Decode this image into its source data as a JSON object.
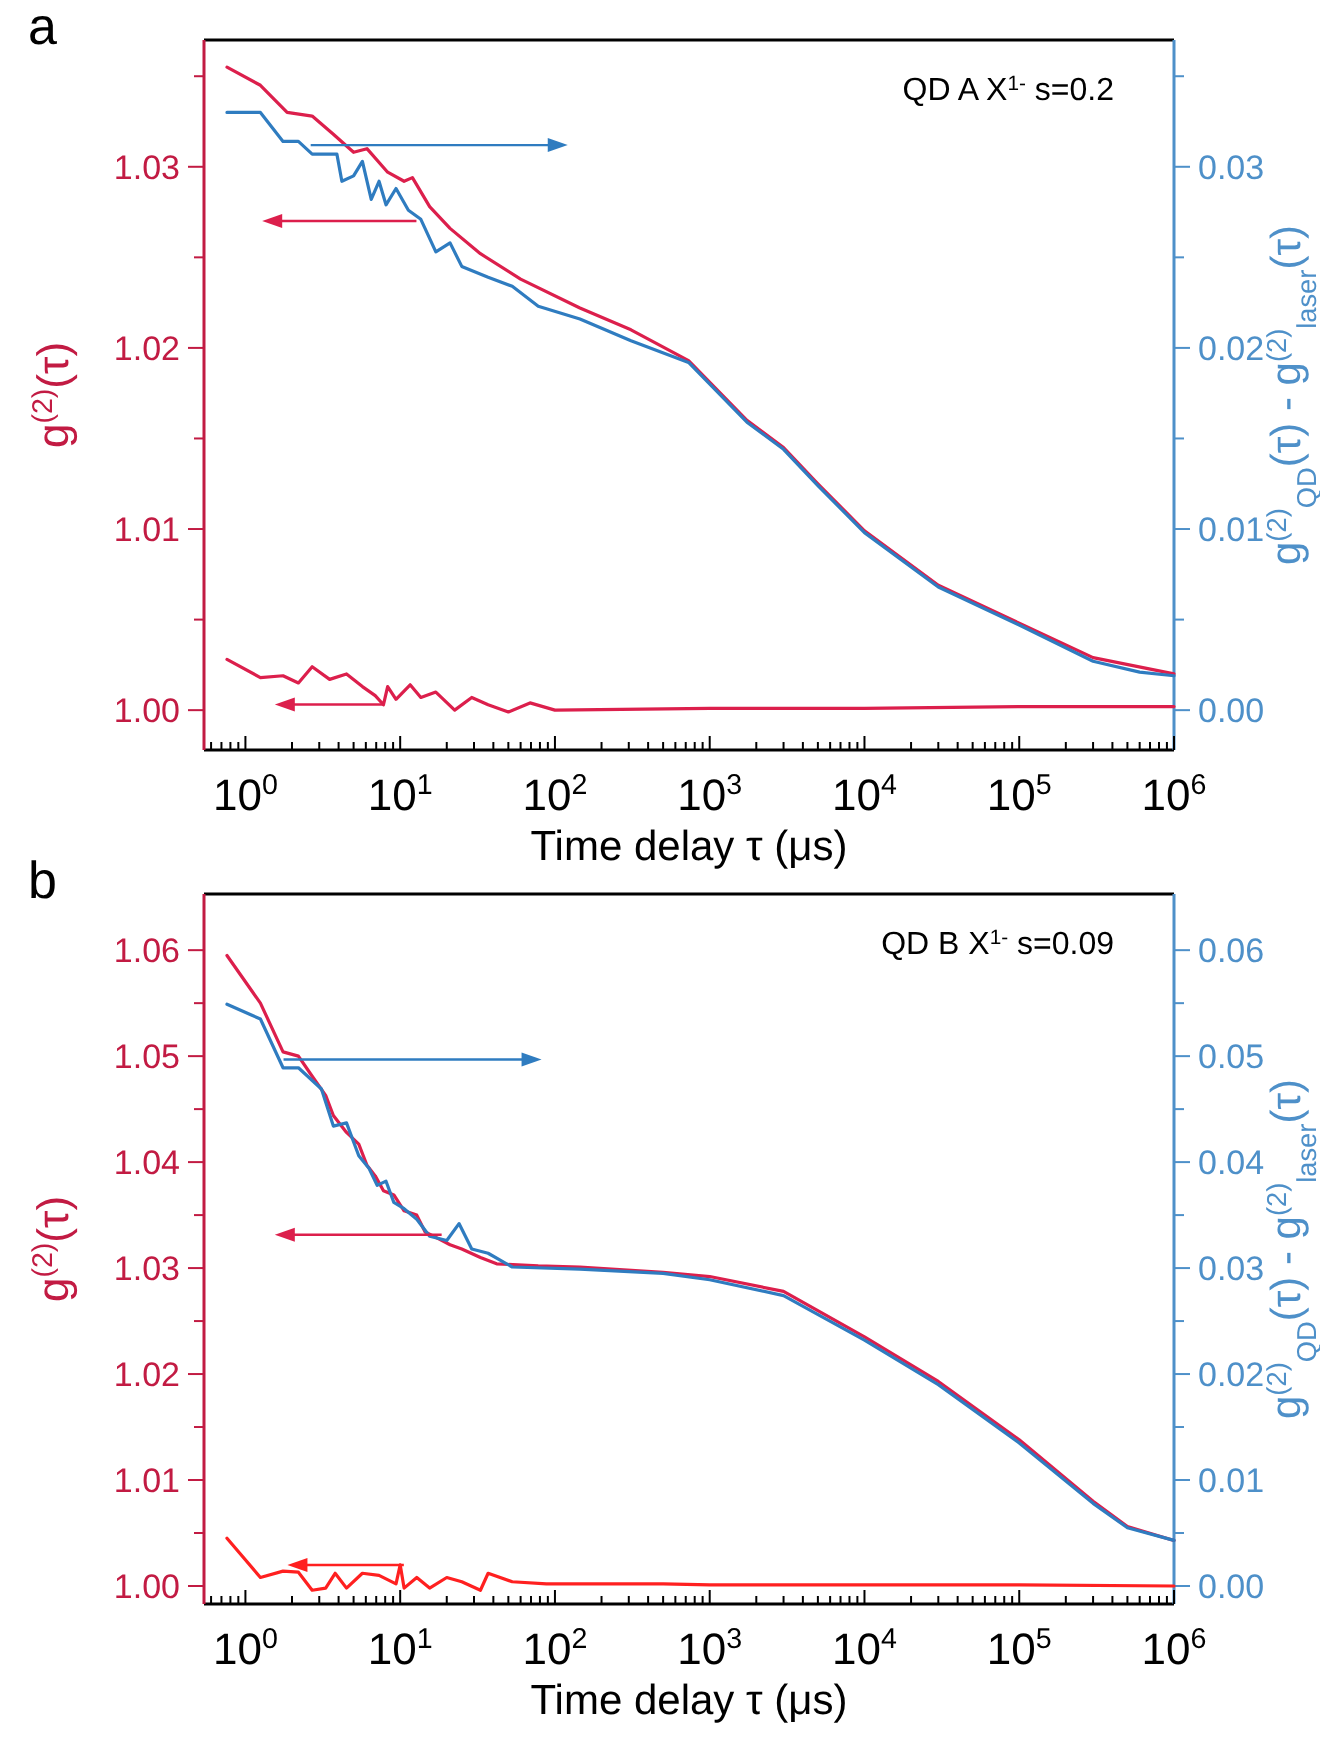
{
  "chart_data": [
    {
      "type": "line",
      "title": "a",
      "xlabel": "Time delay τ (μs)",
      "ylabel": "g$^{(2)}$(τ)",
      "y2label": "g$^{(2)}$$_{QD}$(τ) - g$^{(2)}$$_{laser}$(τ)",
      "annotations": [
        "QD A X$^{1-}$ s=0.2"
      ],
      "log": "x",
      "xlim": [
        0.54,
        1000000
      ],
      "ylim": [
        0.9978,
        1.037
      ],
      "y2lim": [
        -0.0022,
        0.037
      ],
      "xticks": [
        {
          "value": 0.6,
          "label": null
        },
        {
          "value": 0.7,
          "label": null
        },
        {
          "value": 0.8,
          "label": null
        },
        {
          "value": 0.9,
          "label": null
        },
        {
          "value": 1,
          "label": "10$^{0}$"
        },
        {
          "value": 2,
          "label": null
        },
        {
          "value": 3,
          "label": null
        },
        {
          "value": 4,
          "label": null
        },
        {
          "value": 5,
          "label": null
        },
        {
          "value": 6,
          "label": null
        },
        {
          "value": 7,
          "label": null
        },
        {
          "value": 8,
          "label": null
        },
        {
          "value": 9,
          "label": null
        },
        {
          "value": 10,
          "label": "10$^{1}$"
        },
        {
          "value": 20,
          "label": null
        },
        {
          "value": 30,
          "label": null
        },
        {
          "value": 40,
          "label": null
        },
        {
          "value": 50,
          "label": null
        },
        {
          "value": 60,
          "label": null
        },
        {
          "value": 70,
          "label": null
        },
        {
          "value": 80,
          "label": null
        },
        {
          "value": 90,
          "label": null
        },
        {
          "value": 100,
          "label": "10$^{2}$"
        },
        {
          "value": 200,
          "label": null
        },
        {
          "value": 300,
          "label": null
        },
        {
          "value": 400,
          "label": null
        },
        {
          "value": 500,
          "label": null
        },
        {
          "value": 600,
          "label": null
        },
        {
          "value": 700,
          "label": null
        },
        {
          "value": 800,
          "label": null
        },
        {
          "value": 900,
          "label": null
        },
        {
          "value": 1000,
          "label": "10$^{3}$"
        },
        {
          "value": 2000,
          "label": null
        },
        {
          "value": 3000,
          "label": null
        },
        {
          "value": 4000,
          "label": null
        },
        {
          "value": 5000,
          "label": null
        },
        {
          "value": 6000,
          "label": null
        },
        {
          "value": 7000,
          "label": null
        },
        {
          "value": 8000,
          "label": null
        },
        {
          "value": 9000,
          "label": null
        },
        {
          "value": 10000,
          "label": "10$^{4}$"
        },
        {
          "value": 20000,
          "label": null
        },
        {
          "value": 30000,
          "label": null
        },
        {
          "value": 40000,
          "label": null
        },
        {
          "value": 50000,
          "label": null
        },
        {
          "value": 60000,
          "label": null
        },
        {
          "value": 70000,
          "label": null
        },
        {
          "value": 80000,
          "label": null
        },
        {
          "value": 90000,
          "label": null
        },
        {
          "value": 100000,
          "label": "10$^{5}$"
        },
        {
          "value": 200000,
          "label": null
        },
        {
          "value": 300000,
          "label": null
        },
        {
          "value": 400000,
          "label": null
        },
        {
          "value": 500000,
          "label": null
        },
        {
          "value": 600000,
          "label": null
        },
        {
          "value": 700000,
          "label": null
        },
        {
          "value": 800000,
          "label": null
        },
        {
          "value": 900000,
          "label": null
        },
        {
          "value": 1000000,
          "label": "10$^{6}$"
        }
      ],
      "yticks": [
        {
          "value": 1,
          "label": "1.00"
        },
        {
          "value": 1.005,
          "label": null
        },
        1.01,
        {
          "value": 1.015,
          "label": null
        },
        1.02,
        {
          "value": 1.025,
          "label": null
        },
        1.03,
        {
          "value": 1.035,
          "label": null
        }
      ],
      "y2ticks": [
        {
          "value": 0,
          "label": "0.00"
        },
        {
          "value": 0.005,
          "label": null
        },
        0.01,
        {
          "value": 0.015,
          "label": null
        },
        0.02,
        {
          "value": 0.025,
          "label": null
        },
        0.03,
        {
          "value": 0.035,
          "label": null
        }
      ],
      "series": [
        {
          "color": "#dc1f4c",
          "x": [
            0.76,
            1.25,
            1.86,
            2.7,
            3.7,
            5.0,
            6.1,
            8.3,
            10.6,
            12,
            15.5,
            21,
            33,
            60,
            145,
            310,
            730,
            1740,
            3000,
            5000,
            10000,
            30000,
            100000,
            300000,
            1000000
          ],
          "values": [
            1.0355,
            1.0345,
            1.033,
            1.0328,
            1.0318,
            1.0308,
            1.031,
            1.0297,
            1.0292,
            1.0294,
            1.0278,
            1.0266,
            1.0252,
            1.0238,
            1.0222,
            1.021,
            1.0193,
            1.016,
            1.0145,
            1.0125,
            1.0099,
            1.0069,
            1.0048,
            1.0029,
            1.002
          ]
        },
        {
          "color": "#dc1f4c",
          "x": [
            0.76,
            1.25,
            1.75,
            2.2,
            2.7,
            3.5,
            4.5,
            5.7,
            6.9,
            7.8,
            8.3,
            9.4,
            11.6,
            13.6,
            17,
            22.5,
            29,
            37,
            50,
            69,
            100,
            1000,
            10000,
            100000,
            1000000
          ],
          "values": [
            1.0028,
            1.0018,
            1.0019,
            1.0015,
            1.0024,
            1.0017,
            1.002,
            1.0013,
            1.0008,
            1.0003,
            1.0013,
            1.0006,
            1.0014,
            1.0007,
            1.001,
            1.0,
            1.0007,
            1.0003,
            0.9999,
            1.0004,
            1.0,
            1.0001,
            1.0001,
            1.0002,
            1.0002
          ]
        },
        {
          "color": "#2f7cc0",
          "axis": "y2",
          "x": [
            0.76,
            1.25,
            1.75,
            2.2,
            2.7,
            3.9,
            4.2,
            5.0,
            5.7,
            6.5,
            7.3,
            8.1,
            9.4,
            11.3,
            13.6,
            17,
            21,
            25,
            37,
            53,
            78,
            145,
            310,
            730,
            1740,
            3000,
            5000,
            10000,
            30000,
            100000,
            300000,
            600000,
            1000000
          ],
          "values": [
            0.033,
            0.033,
            0.0314,
            0.0314,
            0.0307,
            0.0307,
            0.0292,
            0.0295,
            0.0303,
            0.0282,
            0.0292,
            0.0279,
            0.0288,
            0.0276,
            0.0271,
            0.0253,
            0.0258,
            0.0245,
            0.0239,
            0.0234,
            0.0223,
            0.0216,
            0.0204,
            0.0192,
            0.0159,
            0.0144,
            0.0124,
            0.0098,
            0.0068,
            0.0047,
            0.0027,
            0.0021,
            0.0019
          ]
        }
      ]
    },
    {
      "type": "line",
      "title": "b",
      "xlabel": "Time delay τ (μs)",
      "ylabel": "g$^{(2)}$(τ)",
      "y2label": "g$^{(2)}$$_{QD}$(τ) - g$^{(2)}$$_{laser}$(τ)",
      "annotations": [
        "QD B X$^{1-}$ s=0.09"
      ],
      "log": "x",
      "xlim": [
        0.54,
        1000000
      ],
      "ylim": [
        0.9983,
        1.0653
      ],
      "y2lim": [
        -0.0017,
        0.0653
      ],
      "xticks": [
        {
          "value": 0.6,
          "label": null
        },
        {
          "value": 0.7,
          "label": null
        },
        {
          "value": 0.8,
          "label": null
        },
        {
          "value": 0.9,
          "label": null
        },
        {
          "value": 1,
          "label": "10$^{0}$"
        },
        {
          "value": 2,
          "label": null
        },
        {
          "value": 3,
          "label": null
        },
        {
          "value": 4,
          "label": null
        },
        {
          "value": 5,
          "label": null
        },
        {
          "value": 6,
          "label": null
        },
        {
          "value": 7,
          "label": null
        },
        {
          "value": 8,
          "label": null
        },
        {
          "value": 9,
          "label": null
        },
        {
          "value": 10,
          "label": "10$^{1}$"
        },
        {
          "value": 20,
          "label": null
        },
        {
          "value": 30,
          "label": null
        },
        {
          "value": 40,
          "label": null
        },
        {
          "value": 50,
          "label": null
        },
        {
          "value": 60,
          "label": null
        },
        {
          "value": 70,
          "label": null
        },
        {
          "value": 80,
          "label": null
        },
        {
          "value": 90,
          "label": null
        },
        {
          "value": 100,
          "label": "10$^{2}$"
        },
        {
          "value": 200,
          "label": null
        },
        {
          "value": 300,
          "label": null
        },
        {
          "value": 400,
          "label": null
        },
        {
          "value": 500,
          "label": null
        },
        {
          "value": 600,
          "label": null
        },
        {
          "value": 700,
          "label": null
        },
        {
          "value": 800,
          "label": null
        },
        {
          "value": 900,
          "label": null
        },
        {
          "value": 1000,
          "label": "10$^{3}$"
        },
        {
          "value": 2000,
          "label": null
        },
        {
          "value": 3000,
          "label": null
        },
        {
          "value": 4000,
          "label": null
        },
        {
          "value": 5000,
          "label": null
        },
        {
          "value": 6000,
          "label": null
        },
        {
          "value": 7000,
          "label": null
        },
        {
          "value": 8000,
          "label": null
        },
        {
          "value": 9000,
          "label": null
        },
        {
          "value": 10000,
          "label": "10$^{4}$"
        },
        {
          "value": 20000,
          "label": null
        },
        {
          "value": 30000,
          "label": null
        },
        {
          "value": 40000,
          "label": null
        },
        {
          "value": 50000,
          "label": null
        },
        {
          "value": 60000,
          "label": null
        },
        {
          "value": 70000,
          "label": null
        },
        {
          "value": 80000,
          "label": null
        },
        {
          "value": 90000,
          "label": null
        },
        {
          "value": 100000,
          "label": "10$^{5}$"
        },
        {
          "value": 200000,
          "label": null
        },
        {
          "value": 300000,
          "label": null
        },
        {
          "value": 400000,
          "label": null
        },
        {
          "value": 500000,
          "label": null
        },
        {
          "value": 600000,
          "label": null
        },
        {
          "value": 700000,
          "label": null
        },
        {
          "value": 800000,
          "label": null
        },
        {
          "value": 900000,
          "label": null
        },
        {
          "value": 1000000,
          "label": "10$^{6}$"
        }
      ],
      "yticks": [
        {
          "value": 1,
          "label": "1.00"
        },
        {
          "value": 1.005,
          "label": null
        },
        1.01,
        {
          "value": 1.015,
          "label": null
        },
        1.02,
        {
          "value": 1.025,
          "label": null
        },
        1.03,
        {
          "value": 1.035,
          "label": null
        },
        1.04,
        {
          "value": 1.045,
          "label": null
        },
        1.05,
        {
          "value": 1.055,
          "label": null
        },
        1.06
      ],
      "y2ticks": [
        {
          "value": 0,
          "label": "0.00"
        },
        {
          "value": 0.005,
          "label": null
        },
        0.01,
        {
          "value": 0.015,
          "label": null
        },
        0.02,
        {
          "value": 0.025,
          "label": null
        },
        0.03,
        {
          "value": 0.035,
          "label": null
        },
        0.04,
        {
          "value": 0.045,
          "label": null
        },
        0.05,
        {
          "value": 0.055,
          "label": null
        },
        0.06
      ],
      "series": [
        {
          "color": "#dc1f4c",
          "x": [
            0.76,
            1.25,
            1.75,
            2.2,
            2.7,
            3.3,
            3.7,
            4.5,
            5.4,
            6.1,
            6.9,
            7.8,
            9.1,
            10.6,
            12.8,
            14.5,
            17.5,
            21,
            25,
            33,
            42,
            78,
            145,
            500,
            1000,
            3000,
            10000,
            30000,
            100000,
            300000,
            500000,
            1000000
          ],
          "values": [
            1.0595,
            1.055,
            1.0504,
            1.05,
            1.0481,
            1.0463,
            1.0444,
            1.0428,
            1.0417,
            1.0397,
            1.0387,
            1.0373,
            1.0369,
            1.0354,
            1.035,
            1.0334,
            1.0328,
            1.0322,
            1.0318,
            1.031,
            1.0304,
            1.0302,
            1.0301,
            1.0296,
            1.0292,
            1.0278,
            1.0235,
            1.0193,
            1.0138,
            1.008,
            1.0056,
            1.0043
          ]
        },
        {
          "color": "#ff2020",
          "x": [
            0.76,
            1.25,
            1.75,
            2.2,
            2.7,
            3.3,
            3.8,
            4.5,
            5.7,
            7.3,
            9.4,
            10,
            10.6,
            12.8,
            15.5,
            20,
            25,
            33,
            37,
            53,
            88,
            185,
            500,
            1000,
            10000,
            100000,
            1000000
          ],
          "values": [
            1.0045,
            1.0008,
            1.0014,
            1.0013,
            0.9996,
            0.9998,
            1.0012,
            0.9998,
            1.0012,
            1.001,
            1.0002,
            1.002,
            0.9998,
            1.0008,
            0.9998,
            1.0008,
            1.0004,
            0.9996,
            1.0012,
            1.0004,
            1.0002,
            1.0002,
            1.0002,
            1.0001,
            1.0001,
            1.0001,
            1.0
          ]
        },
        {
          "color": "#2f7cc0",
          "axis": "y2",
          "x": [
            0.76,
            1.25,
            1.75,
            2.2,
            3.1,
            3.7,
            4.5,
            5.4,
            6.3,
            7.1,
            8.1,
            9.1,
            10.6,
            12.8,
            15.5,
            20,
            24,
            29,
            37,
            53,
            145,
            500,
            1000,
            3000,
            10000,
            30000,
            100000,
            300000,
            500000,
            1000000
          ],
          "values": [
            0.0549,
            0.0535,
            0.0489,
            0.0489,
            0.0469,
            0.0434,
            0.0437,
            0.0406,
            0.0394,
            0.0378,
            0.0382,
            0.0362,
            0.0356,
            0.0346,
            0.033,
            0.0326,
            0.0342,
            0.0318,
            0.0314,
            0.0301,
            0.0299,
            0.0295,
            0.0289,
            0.0274,
            0.0232,
            0.019,
            0.0135,
            0.0078,
            0.0055,
            0.0043
          ]
        }
      ]
    }
  ]
}
